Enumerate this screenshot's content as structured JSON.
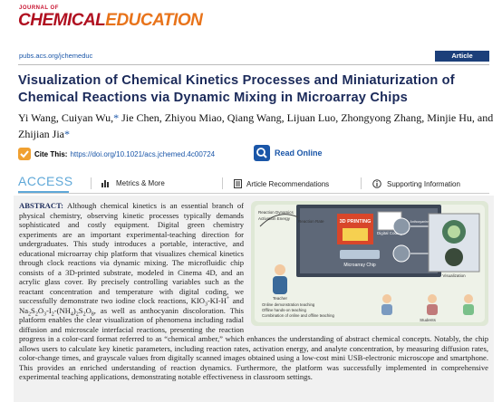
{
  "header": {
    "journal_small": "JOURNAL OF",
    "journal_name_1": "CHEMICAL",
    "journal_name_2": "EDUCATION",
    "url": "pubs.acs.org/jchemeduc",
    "article_type": "Article"
  },
  "title": "Visualization of Chemical Kinetics Processes and Miniaturization of Chemical Reactions via Dynamic Mixing in Microarray Chips",
  "authors": [
    {
      "text": "Yi Wang, Cuiyan Wu,"
    },
    {
      "mark": "*"
    },
    {
      "text": " Jie Chen, Zhiyou Miao, Qiang Wang, Lijuan Luo, Zhongyong Zhang, Minjie Hu, and Zhijian Jia"
    },
    {
      "mark": "*"
    }
  ],
  "cite": {
    "label": "Cite This:",
    "doi": "https://doi.org/10.1021/acs.jchemed.4c00724",
    "read_online": "Read Online"
  },
  "access_bar": {
    "access": "ACCESS",
    "links": [
      "Metrics & More",
      "Article Recommendations",
      "Supporting Information"
    ]
  },
  "abstract": {
    "label": "ABSTRACT:",
    "segments": [
      {
        "text": " Although chemical kinetics is an essential branch of physical chemistry, observing kinetic processes typically demands sophisticated and costly equipment. Digital green chemistry experiments are an important experimental-teaching direction for undergraduates. This study introduces a portable, interactive, and educational microarray chip platform that visualizes chemical kinetics through clock reactions via dynamic mixing. The microfluidic chip consists of a 3D-printed substrate, modeled in Cinema 4D, and an acrylic glass cover. By precisely controlling variables such as the reactant concentration and temperature with digital coding, we successfully demonstrate two iodine clock reactions, KIO"
      },
      {
        "sub": "3"
      },
      {
        "text": "-KI-H"
      },
      {
        "sup": "+"
      },
      {
        "text": " and Na"
      },
      {
        "sub": "2"
      },
      {
        "text": "S"
      },
      {
        "sub": "2"
      },
      {
        "text": "O"
      },
      {
        "sub": "3"
      },
      {
        "text": "-I"
      },
      {
        "sub": "2"
      },
      {
        "text": "-(NH"
      },
      {
        "sub": "4"
      },
      {
        "text": ")"
      },
      {
        "sub": "2"
      },
      {
        "text": "S"
      },
      {
        "sub": "2"
      },
      {
        "text": "O"
      },
      {
        "sub": "8"
      },
      {
        "text": ", as well as anthocyanin discoloration. This platform enables the clear visualization of phenomena including radial diffusion and microscale interfacial reactions, presenting the reaction progress in a color-card format referred to as “chemical amber,” which enhances the understanding of abstract chemical concepts. Notably, the chip allows users to calculate key kinetic parameters, including reaction rates, activation energy, and analyte concentration, by measuring diffusion rates, color-change times, and grayscale values from digitally scanned images obtained using a low-cost mini USB-electronic microscope and smartphone. This provides an enriched understanding of reaction dynamics. Furthermore, the platform was successfully implemented in comprehensive experimental teaching applications, demonstrating notable effectiveness in classroom settings."
      }
    ]
  },
  "graphic": {
    "reaction_dynamics": "Reaction Dynamics",
    "activation_energy": "Activation Energy",
    "reaction_rate": "Reaction Rate",
    "printing": "3D PRINTING",
    "digital_coding": "Digital Coding",
    "chip": "Microarray Chip",
    "anthocyanins": "Anthocyanins",
    "visualization": "Visualization",
    "teacher": "Teacher",
    "students": "Students",
    "bullets": [
      "Online demonstration teaching",
      "Offline hands-on teaching",
      "Combination of online and offline teaching"
    ]
  }
}
